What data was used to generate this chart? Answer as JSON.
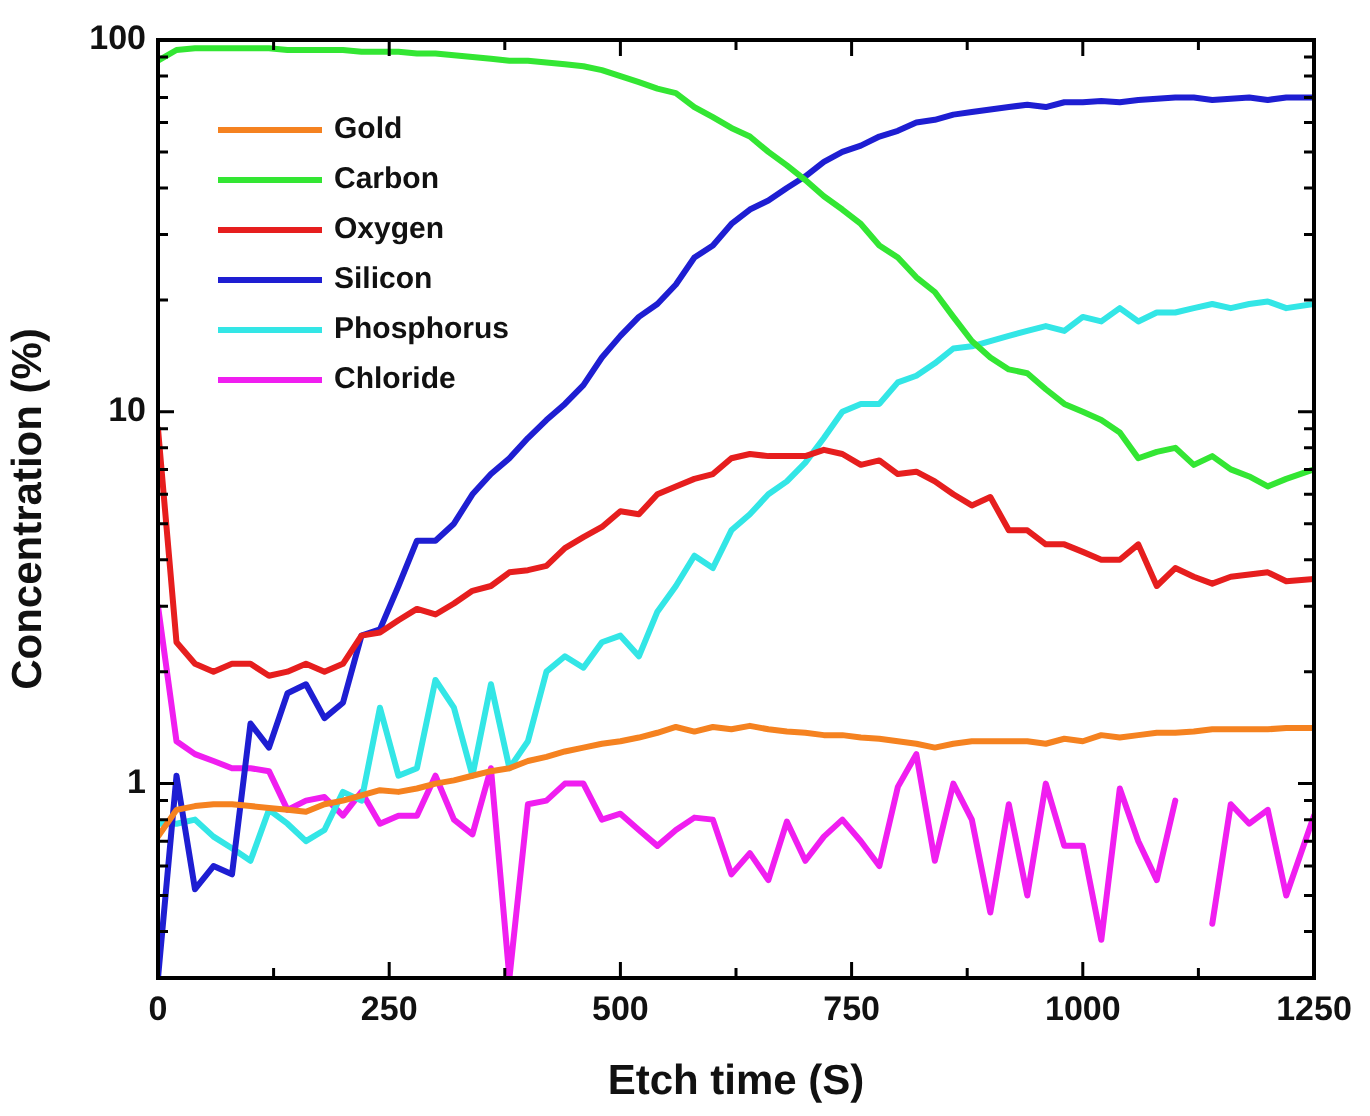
{
  "chart_data": {
    "type": "line",
    "xlabel": "Etch time (S)",
    "ylabel": "Concentration (%)",
    "log": "y",
    "grid": false,
    "legend": "top left",
    "marker": "none",
    "line_style": "solid",
    "xlim": [
      0,
      1250
    ],
    "xticks": [
      0,
      {
        "value": 125,
        "label": null
      },
      250,
      {
        "value": 375,
        "label": null
      },
      500,
      {
        "value": 625,
        "label": null
      },
      750,
      {
        "value": 875,
        "label": null
      },
      1000,
      {
        "value": 1125,
        "label": null
      },
      1250
    ],
    "ylim": [
      0.3,
      100
    ],
    "yticks": [
      {
        "value": 0.4,
        "label": null
      },
      {
        "value": 0.5,
        "label": null
      },
      {
        "value": 0.6,
        "label": null
      },
      {
        "value": 0.7,
        "label": null
      },
      {
        "value": 0.8,
        "label": null
      },
      {
        "value": 0.9,
        "label": null
      },
      1,
      {
        "value": 2,
        "label": null
      },
      {
        "value": 3,
        "label": null
      },
      {
        "value": 4,
        "label": null
      },
      {
        "value": 5,
        "label": null
      },
      {
        "value": 6,
        "label": null
      },
      {
        "value": 7,
        "label": null
      },
      {
        "value": 8,
        "label": null
      },
      {
        "value": 9,
        "label": null
      },
      10,
      {
        "value": 20,
        "label": null
      },
      {
        "value": 30,
        "label": null
      },
      {
        "value": 40,
        "label": null
      },
      {
        "value": 50,
        "label": null
      },
      {
        "value": 60,
        "label": null
      },
      {
        "value": 70,
        "label": null
      },
      {
        "value": 80,
        "label": null
      },
      {
        "value": 90,
        "label": null
      },
      100
    ],
    "x": [
      0,
      20,
      40,
      60,
      80,
      100,
      120,
      140,
      160,
      180,
      200,
      220,
      240,
      260,
      280,
      300,
      320,
      340,
      360,
      380,
      400,
      420,
      440,
      460,
      480,
      500,
      520,
      540,
      560,
      580,
      600,
      620,
      640,
      660,
      680,
      700,
      720,
      740,
      760,
      780,
      800,
      820,
      840,
      860,
      880,
      900,
      920,
      940,
      960,
      980,
      1000,
      1020,
      1040,
      1060,
      1080,
      1100,
      1120,
      1140,
      1160,
      1180,
      1200,
      1220,
      1250
    ],
    "series": [
      {
        "name": "Gold",
        "color": "#f58220",
        "values": [
          0.72,
          0.85,
          0.87,
          0.88,
          0.88,
          0.87,
          0.86,
          0.85,
          0.84,
          0.88,
          0.9,
          0.93,
          0.96,
          0.95,
          0.97,
          1.0,
          1.02,
          1.05,
          1.08,
          1.1,
          1.15,
          1.18,
          1.22,
          1.25,
          1.28,
          1.3,
          1.33,
          1.37,
          1.42,
          1.38,
          1.42,
          1.4,
          1.43,
          1.4,
          1.38,
          1.37,
          1.35,
          1.35,
          1.33,
          1.32,
          1.3,
          1.28,
          1.25,
          1.28,
          1.3,
          1.3,
          1.3,
          1.3,
          1.28,
          1.32,
          1.3,
          1.35,
          1.33,
          1.35,
          1.37,
          1.37,
          1.38,
          1.4,
          1.4,
          1.4,
          1.4,
          1.41,
          1.41
        ]
      },
      {
        "name": "Carbon",
        "color": "#33e633",
        "values": [
          88,
          94,
          95,
          95,
          95,
          95,
          95,
          94,
          94,
          94,
          94,
          93,
          93,
          93,
          92,
          92,
          91,
          90,
          89,
          88,
          88,
          87,
          86,
          85,
          83,
          80,
          77,
          74,
          72,
          66,
          62,
          58,
          55,
          50,
          46,
          42,
          38,
          35,
          32,
          28,
          26,
          23,
          21,
          18,
          15.5,
          14,
          13,
          12.7,
          11.5,
          10.5,
          10,
          9.5,
          8.8,
          7.5,
          7.8,
          8,
          7.2,
          7.6,
          7,
          6.7,
          6.3,
          6.6,
          7
        ]
      },
      {
        "name": "Oxygen",
        "color": "#e61e1e",
        "values": [
          9,
          2.4,
          2.1,
          2.0,
          2.1,
          2.1,
          1.95,
          2.0,
          2.1,
          2.0,
          2.1,
          2.5,
          2.55,
          2.75,
          2.95,
          2.85,
          3.05,
          3.3,
          3.4,
          3.7,
          3.75,
          3.85,
          4.3,
          4.6,
          4.9,
          5.4,
          5.3,
          6.0,
          6.3,
          6.6,
          6.8,
          7.5,
          7.7,
          7.6,
          7.6,
          7.6,
          7.9,
          7.7,
          7.2,
          7.4,
          6.8,
          6.9,
          6.5,
          6.0,
          5.6,
          5.9,
          4.8,
          4.8,
          4.4,
          4.4,
          4.2,
          4.0,
          4.0,
          4.4,
          3.4,
          3.8,
          3.6,
          3.45,
          3.6,
          3.65,
          3.7,
          3.5,
          3.55
        ]
      },
      {
        "name": "Silicon",
        "color": "#1e1ed2",
        "values": [
          0.3,
          1.05,
          0.52,
          0.6,
          0.57,
          1.45,
          1.25,
          1.75,
          1.85,
          1.5,
          1.65,
          2.5,
          2.6,
          3.4,
          4.5,
          4.5,
          5.0,
          6.0,
          6.8,
          7.5,
          8.5,
          9.5,
          10.5,
          11.8,
          14,
          16,
          18,
          19.5,
          22,
          26,
          28,
          32,
          35,
          37,
          40,
          43,
          47,
          50,
          52,
          55,
          57,
          60,
          61,
          63,
          64,
          65,
          66,
          67,
          66,
          68,
          68,
          68.5,
          68,
          69,
          69.5,
          70,
          70,
          69,
          69.5,
          70,
          69,
          70,
          70
        ]
      },
      {
        "name": "Phosphorus",
        "color": "#33e6e6",
        "values": [
          0.78,
          0.78,
          0.8,
          0.72,
          0.67,
          0.62,
          0.85,
          0.78,
          0.7,
          0.75,
          0.95,
          0.9,
          1.6,
          1.05,
          1.1,
          1.9,
          1.6,
          1.05,
          1.85,
          1.1,
          1.3,
          2.0,
          2.2,
          2.05,
          2.4,
          2.5,
          2.2,
          2.9,
          3.4,
          4.1,
          3.8,
          4.8,
          5.3,
          6.0,
          6.5,
          7.3,
          8.5,
          10,
          10.5,
          10.5,
          12,
          12.5,
          13.5,
          14.8,
          15,
          15.5,
          16,
          16.5,
          17,
          16.5,
          18,
          17.5,
          19,
          17.5,
          18.5,
          18.5,
          19,
          19.5,
          19,
          19.5,
          19.8,
          19,
          19.5
        ]
      },
      {
        "name": "Chloride",
        "color": "#f01ef0",
        "values": [
          3.0,
          1.3,
          1.2,
          1.15,
          1.1,
          1.1,
          1.08,
          0.85,
          0.9,
          0.92,
          0.82,
          0.95,
          0.78,
          0.82,
          0.82,
          1.05,
          0.8,
          0.73,
          1.1,
          0.3,
          0.88,
          0.9,
          1.0,
          1.0,
          0.8,
          0.83,
          0.75,
          0.68,
          0.75,
          0.81,
          0.8,
          0.57,
          0.65,
          0.55,
          0.79,
          0.62,
          0.72,
          0.8,
          0.7,
          0.6,
          0.98,
          1.2,
          0.62,
          1.0,
          0.8,
          0.45,
          0.88,
          0.5,
          1.0,
          0.68,
          0.68,
          0.38,
          0.97,
          0.7,
          0.55,
          0.9,
          null,
          0.42,
          0.88,
          0.78,
          0.85,
          0.5,
          0.82
        ]
      }
    ]
  }
}
